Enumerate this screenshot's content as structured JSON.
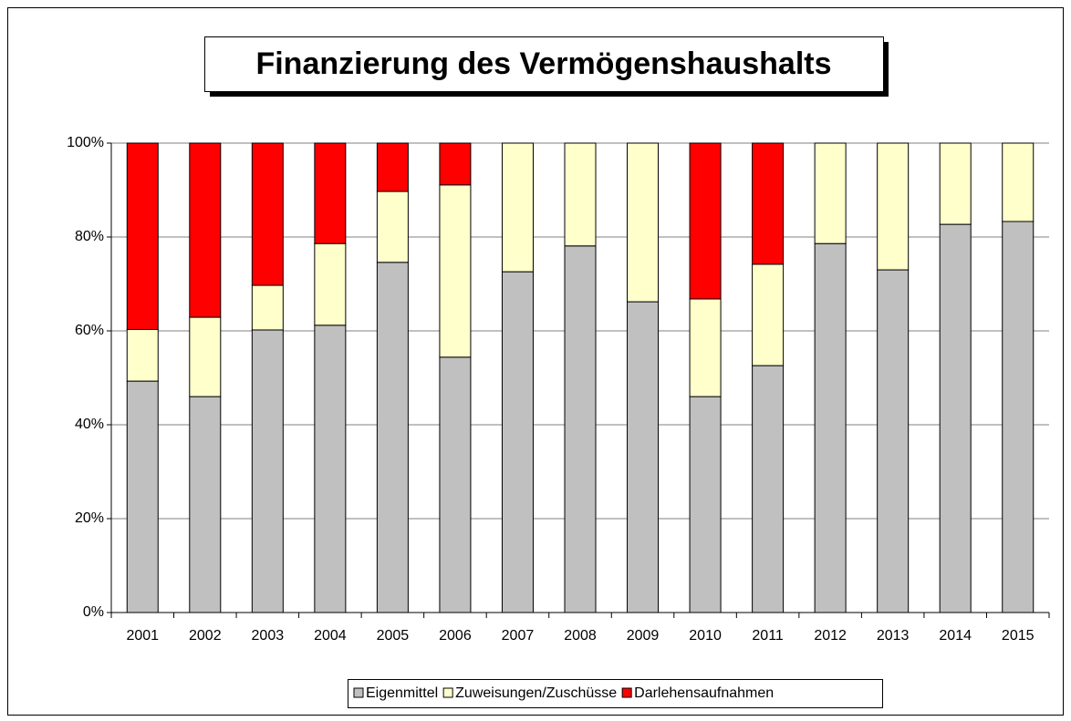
{
  "chart_data": {
    "type": "stacked_bar",
    "title": "Finanzierung des Vermögenshaushalts",
    "categories": [
      "2001",
      "2002",
      "2003",
      "2004",
      "2005",
      "2006",
      "2007",
      "2008",
      "2009",
      "2010",
      "2011",
      "2012",
      "2013",
      "2014",
      "2015"
    ],
    "series": [
      {
        "name": "Eigenmittel",
        "color": "#c0c0c0",
        "values": [
          49.3,
          46.0,
          60.2,
          61.2,
          74.6,
          54.4,
          72.6,
          78.1,
          66.2,
          46.0,
          52.6,
          78.6,
          73.0,
          82.7,
          83.3
        ]
      },
      {
        "name": "Zuweisungen/Zuschüsse",
        "color": "#ffffcc",
        "values": [
          11.0,
          16.9,
          9.5,
          17.4,
          15.1,
          36.7,
          27.4,
          21.9,
          33.8,
          20.8,
          21.6,
          21.4,
          27.0,
          17.3,
          16.7
        ]
      },
      {
        "name": "Darlehensaufnahmen",
        "color": "#ff0000",
        "values": [
          39.7,
          37.1,
          30.3,
          21.4,
          10.3,
          8.9,
          0,
          0,
          0,
          33.2,
          25.8,
          0,
          0,
          0,
          0
        ]
      }
    ],
    "ylim": [
      0,
      100
    ],
    "yticks": [
      {
        "value": 0,
        "label": "0%"
      },
      {
        "value": 20,
        "label": "20%"
      },
      {
        "value": 40,
        "label": "40%"
      },
      {
        "value": 60,
        "label": "60%"
      },
      {
        "value": 80,
        "label": "80%"
      },
      {
        "value": 100,
        "label": "100%"
      }
    ],
    "grid": true,
    "legend": "bottom"
  }
}
